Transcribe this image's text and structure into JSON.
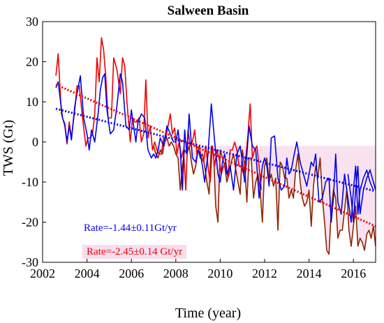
{
  "chart_data": {
    "type": "line",
    "title": "Salween Basin",
    "xlabel": "Time (year)",
    "ylabel": "TWS (Gt)",
    "xlim": [
      2002,
      2017
    ],
    "ylim": [
      -30,
      30
    ],
    "xticks": [
      2002,
      2004,
      2006,
      2008,
      2010,
      2012,
      2014,
      2016
    ],
    "yticks": [
      -30,
      -20,
      -10,
      0,
      10,
      20,
      30
    ],
    "grid": false,
    "colors": {
      "blue": "#0000ee",
      "red": "#ee0000",
      "brown": "#8b2500",
      "fill": "#f5d5ea"
    },
    "series": [
      {
        "id": "blue",
        "color": "#0000ee",
        "x": [
          2002.6,
          2002.7,
          2002.9,
          2003.0,
          2003.1,
          2003.2,
          2003.3,
          2003.45,
          2003.55,
          2003.7,
          2003.85,
          2004.0,
          2004.1,
          2004.2,
          2004.35,
          2004.5,
          2004.6,
          2004.7,
          2004.8,
          2004.9,
          2005.05,
          2005.2,
          2005.35,
          2005.5,
          2005.6,
          2005.75,
          2005.9,
          2006.0,
          2006.1,
          2006.2,
          2006.3,
          2006.45,
          2006.6,
          2006.75,
          2006.9,
          2007.0,
          2007.1,
          2007.2,
          2007.3,
          2007.45,
          2007.6,
          2007.75,
          2007.9,
          2008.0,
          2008.1,
          2008.2,
          2008.3,
          2008.4,
          2008.5,
          2008.6,
          2008.75,
          2008.9,
          2009.0,
          2009.1,
          2009.2,
          2009.3,
          2009.45,
          2009.6,
          2009.75,
          2009.9,
          2010.0,
          2010.1,
          2010.2,
          2010.3,
          2010.45,
          2010.6,
          2010.75,
          2010.9,
          2011.0,
          2011.1,
          2011.2,
          2011.3,
          2011.45,
          2011.6,
          2011.75,
          2011.9,
          2012.0,
          2012.1,
          2012.2,
          2012.3,
          2012.45,
          2012.6,
          2012.75,
          2012.9,
          2013.0,
          2013.1,
          2013.2,
          2013.3,
          2013.45,
          2013.6,
          2013.75,
          2013.9,
          2014.0,
          2014.1,
          2014.2,
          2014.3,
          2014.45,
          2014.6,
          2014.75,
          2014.9,
          2015.0,
          2015.1,
          2015.2,
          2015.3,
          2015.45,
          2015.6,
          2015.75,
          2015.9,
          2016.0,
          2016.1,
          2016.2,
          2016.3,
          2016.45,
          2016.6,
          2016.75,
          2016.9
        ],
        "y": [
          13.5,
          15.0,
          6.0,
          4.5,
          0.0,
          4.0,
          0.5,
          9.0,
          12.0,
          16.5,
          6.0,
          2.0,
          -2.0,
          3.0,
          0.0,
          7.0,
          13.0,
          16.0,
          17.0,
          8.0,
          2.0,
          3.0,
          9.0,
          17.0,
          15.0,
          4.0,
          3.0,
          8.0,
          4.0,
          0.0,
          5.0,
          7.0,
          6.0,
          -2.0,
          -4.0,
          -3.0,
          -4.0,
          -2.0,
          1.0,
          -1.0,
          4.0,
          2.0,
          0.0,
          0.0,
          3.0,
          -2.0,
          -12.0,
          3.0,
          -3.0,
          7.0,
          -4.0,
          -5.0,
          -2.0,
          -3.0,
          -6.0,
          -10.0,
          -3.0,
          9.5,
          0.0,
          -8.0,
          -10.0,
          -5.0,
          -3.0,
          -8.0,
          -6.0,
          -12.0,
          -3.0,
          -1.0,
          -5.0,
          -10.0,
          -3.0,
          4.0,
          -1.0,
          -2.0,
          -14.0,
          -6.0,
          -4.0,
          -6.0,
          -11.0,
          1.0,
          1.5,
          -9.0,
          -12.0,
          -11.0,
          -4.0,
          -8.0,
          -7.0,
          -4.0,
          0.0,
          -5.0,
          -8.0,
          -11.0,
          -8.0,
          -5.0,
          -6.0,
          -3.0,
          -15.0,
          -14.0,
          -10.0,
          -9.0,
          -20.0,
          -14.0,
          -3.0,
          -15.0,
          -18.0,
          -8.0,
          -14.0,
          -20.0,
          -12.0,
          -6.0,
          -18.0,
          -12.0,
          -9.0,
          -7.0,
          -10.0,
          -12.0
        ],
        "extra": {
          "x": [
            2015.75,
            2015.9,
            2016.0,
            2016.1,
            2016.2,
            2016.3,
            2016.45,
            2016.6,
            2016.75,
            2016.9,
            2017.0
          ],
          "y": [
            -8,
            -14,
            -20,
            -12,
            -6,
            -18,
            -12,
            -9,
            -7,
            -10,
            -12
          ]
        }
      },
      {
        "id": "red",
        "color": "#ee0000",
        "x": [
          2002.6,
          2002.7,
          2002.85,
          2003.0,
          2003.1,
          2003.2,
          2003.3,
          2003.45,
          2003.55,
          2003.65,
          2003.8,
          2003.95,
          2004.05,
          2004.15,
          2004.25,
          2004.35,
          2004.45,
          2004.55,
          2004.65,
          2004.75,
          2004.85,
          2004.95,
          2005.1,
          2005.2,
          2005.35,
          2005.5,
          2005.6,
          2005.7,
          2005.8,
          2005.95,
          2006.05,
          2006.15,
          2006.25,
          2006.35,
          2006.45,
          2006.55,
          2006.65,
          2006.75,
          2006.85,
          2006.95,
          2007.05,
          2007.15,
          2007.25,
          2007.35,
          2007.45,
          2007.55,
          2007.65,
          2007.75,
          2007.85,
          2007.95,
          2008.05,
          2008.15,
          2008.25,
          2008.35,
          2008.45,
          2008.55,
          2008.65,
          2008.75,
          2008.85,
          2008.95,
          2009.05,
          2009.15,
          2009.25,
          2009.35,
          2009.45,
          2009.55,
          2009.65,
          2009.75,
          2009.85,
          2009.95,
          2010.05,
          2010.15,
          2010.25,
          2010.35,
          2010.45,
          2010.55,
          2010.65,
          2010.75,
          2010.85,
          2010.95,
          2011.05,
          2011.15,
          2011.25,
          2011.35,
          2011.45,
          2011.55,
          2011.65,
          2011.75,
          2011.85
        ],
        "y": [
          16.5,
          22.0,
          7.0,
          4.0,
          -0.5,
          5.0,
          1.0,
          8.0,
          14.0,
          14.0,
          6.0,
          -1.0,
          1.0,
          1.0,
          2.0,
          7.0,
          21.0,
          15.0,
          26.0,
          23.0,
          16.0,
          6.0,
          6.0,
          21.0,
          18.0,
          12.0,
          21.0,
          19.0,
          10.0,
          0.0,
          6.0,
          5.0,
          5.0,
          6.0,
          0.0,
          2.0,
          15.5,
          1.0,
          4.0,
          -2.0,
          0.0,
          -2.0,
          -3.0,
          -3.0,
          1.0,
          1.0,
          4.0,
          7.0,
          2.0,
          3.5,
          -3.0,
          0.0,
          -4.0,
          -2.0,
          -12.0,
          3.0,
          -1.0,
          0.0,
          3.0,
          -3.0,
          -1.0,
          -4.0,
          -5.0,
          -1.0,
          -6.0,
          -10.0,
          -1.0,
          -6.0,
          -2.0,
          -4.0,
          -8.0,
          -6.0,
          -5.0,
          -9.0,
          -2.0,
          -2.0,
          0.0,
          -2.0,
          -6.0,
          -6.0,
          -8.0,
          -4.0,
          2.0,
          9.5,
          -4.0,
          -2.0,
          -1.0,
          -6.0,
          -12.0
        ]
      },
      {
        "id": "brown",
        "color": "#8b2500",
        "x": [
          2007.0,
          2007.1,
          2007.2,
          2007.3,
          2007.4,
          2007.5,
          2007.6,
          2007.7,
          2007.8,
          2007.9,
          2008.0,
          2008.1,
          2008.2,
          2008.3,
          2008.4,
          2008.5,
          2008.6,
          2008.7,
          2008.8,
          2008.9,
          2009.0,
          2009.1,
          2009.2,
          2009.3,
          2009.4,
          2009.5,
          2009.6,
          2009.7,
          2009.8,
          2009.9,
          2010.0,
          2010.1,
          2010.2,
          2010.3,
          2010.4,
          2010.5,
          2010.6,
          2010.7,
          2010.8,
          2010.9,
          2011.0,
          2011.1,
          2011.2,
          2011.3,
          2011.4,
          2011.5,
          2011.6,
          2011.7,
          2011.8,
          2011.9,
          2012.0,
          2012.1,
          2012.2,
          2012.3,
          2012.4,
          2012.5,
          2012.6,
          2012.7,
          2012.8,
          2012.9,
          2013.0,
          2013.1,
          2013.2,
          2013.3,
          2013.4,
          2013.5,
          2013.6,
          2013.7,
          2013.8,
          2013.9,
          2014.0,
          2014.1,
          2014.2,
          2014.3,
          2014.4,
          2014.5,
          2014.6,
          2014.7,
          2014.8,
          2014.9,
          2015.0,
          2015.1,
          2015.2,
          2015.3,
          2015.4,
          2015.5,
          2015.6,
          2015.7,
          2015.8,
          2015.9,
          2016.0,
          2016.1,
          2016.2,
          2016.3,
          2016.4,
          2016.5,
          2016.6,
          2016.7,
          2016.8,
          2016.9,
          2017.0
        ],
        "y": [
          -1,
          -3,
          -4,
          -2,
          -3,
          0,
          1,
          -1,
          0,
          -1,
          -3,
          -4,
          -12,
          -6,
          -2,
          -3,
          -1,
          -5,
          -8,
          -6,
          -2,
          -4,
          -3,
          -6,
          -10,
          -13,
          -1,
          -3,
          -16,
          -20,
          -2,
          -4,
          -6,
          -10,
          -8,
          -5,
          -3,
          -7,
          -10,
          -13,
          -2,
          -6,
          -15,
          -4,
          -4,
          -14,
          -10,
          -8,
          -12,
          -20,
          -6,
          -4,
          -10,
          -8,
          -11,
          -9,
          -22,
          -5,
          -6,
          -9,
          -9,
          -14,
          -12,
          -14,
          -7,
          -3,
          -10,
          -14,
          -16,
          -15,
          -12,
          -21,
          -11,
          -6,
          -9,
          -4,
          -14,
          -20,
          -27,
          -28,
          -17,
          -12,
          -14,
          -24,
          -22,
          -22,
          -17,
          -12,
          -22,
          -26,
          -21,
          -16,
          -26,
          -24,
          -25,
          -27,
          -23,
          -22,
          -24,
          -21,
          -26
        ]
      }
    ],
    "trends": [
      {
        "id": "blue-trend",
        "color": "#0000ee",
        "x": [
          2002.6,
          2017.0
        ],
        "y": [
          8.3,
          -12.3
        ],
        "label": "Rate=-1.44±0.11Gt/yr"
      },
      {
        "id": "red-trend",
        "color": "#ee0000",
        "x": [
          2002.6,
          2017.0
        ],
        "y": [
          14.3,
          -21.0
        ],
        "label": "Rate=-2.45±0.14 Gt/yr"
      }
    ]
  }
}
